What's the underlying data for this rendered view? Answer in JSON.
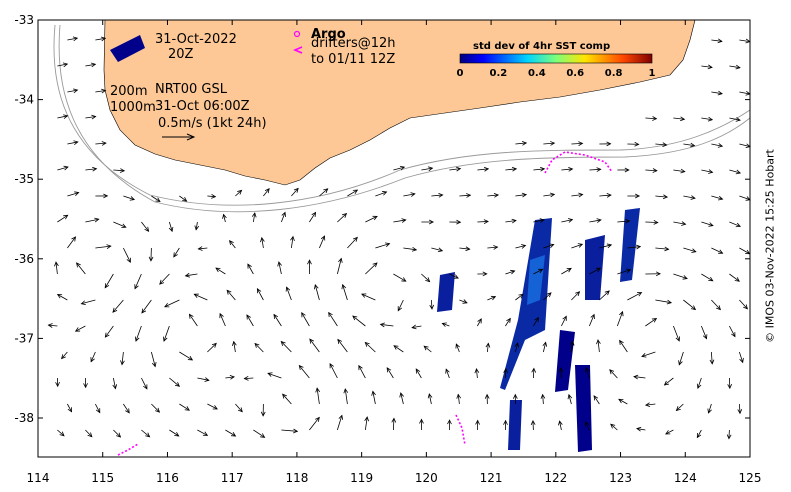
{
  "date_label": "31-Oct-2022",
  "time_label": "20Z",
  "argo_label": "Argo",
  "drifters_label": "drifters@12h",
  "drifters_to_label": "to 01/11 12Z",
  "depth_label_1": "200m",
  "depth_label_2": "1000m",
  "product_label": "NRT00 GSL",
  "product_time_label": "31-Oct 06:00Z",
  "scale_label": "0.5m/s (1kt 24h)",
  "colorbar": {
    "title": "std dev of 4hr SST comp",
    "ticks": [
      "0",
      "0.2",
      "0.4",
      "0.6",
      "0.8",
      "1"
    ]
  },
  "copyright": "© IMOS 03-Nov-2022 15:25 Hobart",
  "x_ticks": [
    "114",
    "115",
    "116",
    "117",
    "118",
    "119",
    "120",
    "121",
    "122",
    "123",
    "124",
    "125"
  ],
  "y_ticks": [
    "-33",
    "-34",
    "-35",
    "-36",
    "-37",
    "-38"
  ],
  "colors": {
    "land": "#fdc896",
    "arrows": "#000000",
    "drifters": "#ff00ff",
    "sst_low": "#00008b",
    "sst_mid": "#1e90ff"
  }
}
